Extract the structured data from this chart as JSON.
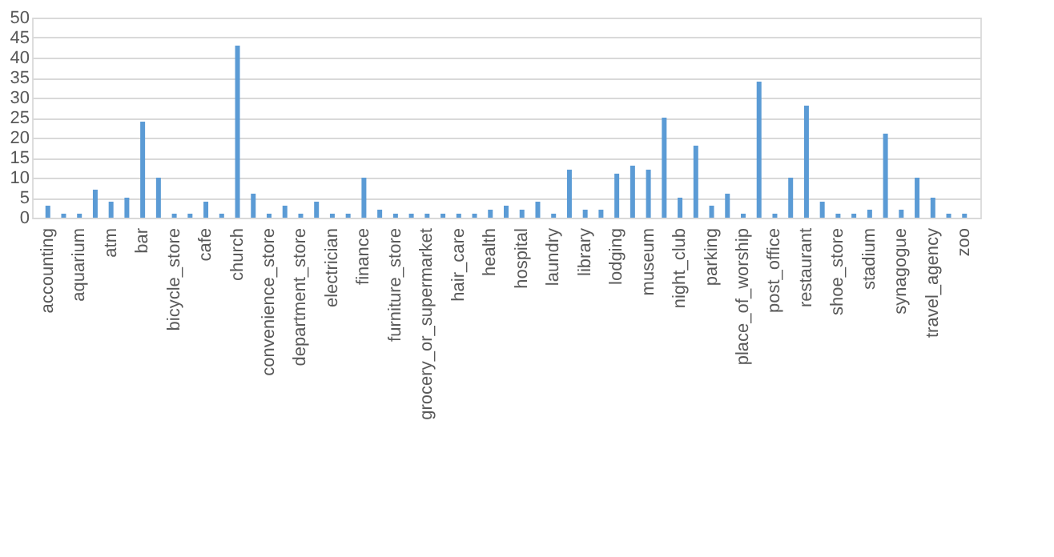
{
  "chart_data": {
    "type": "bar",
    "categories": [
      "accounting",
      null,
      "aquarium",
      null,
      "atm",
      null,
      "bar",
      null,
      "bicycle_store",
      null,
      "cafe",
      null,
      "church",
      null,
      "convenience_store",
      null,
      "department_store",
      null,
      "electrician",
      null,
      "finance",
      null,
      "furniture_store",
      null,
      "grocery_or_supermarket",
      null,
      "hair_care",
      null,
      "health",
      null,
      "hospital",
      null,
      "laundry",
      null,
      "library",
      null,
      "lodging",
      null,
      "museum",
      null,
      "night_club",
      null,
      "parking",
      null,
      "place_of_worship",
      null,
      "post_office",
      null,
      "restaurant",
      null,
      "shoe_store",
      null,
      "stadium",
      null,
      "synagogue",
      null,
      "travel_agency",
      null,
      "zoo"
    ],
    "values": [
      3,
      1,
      1,
      7,
      4,
      5,
      24,
      10,
      1,
      1,
      4,
      1,
      43,
      6,
      1,
      3,
      1,
      4,
      1,
      1,
      10,
      2,
      1,
      1,
      1,
      1,
      1,
      1,
      2,
      3,
      2,
      4,
      1,
      12,
      2,
      2,
      11,
      13,
      12,
      25,
      5,
      18,
      3,
      6,
      1,
      34,
      1,
      10,
      28,
      4,
      1,
      1,
      2,
      21,
      2,
      10,
      5,
      1,
      1
    ],
    "color": "#5b9bd5",
    "ylim": [
      0,
      50
    ],
    "yticks": [
      0,
      5,
      10,
      15,
      20,
      25,
      30,
      35,
      40,
      45,
      50
    ],
    "grid": "y"
  }
}
